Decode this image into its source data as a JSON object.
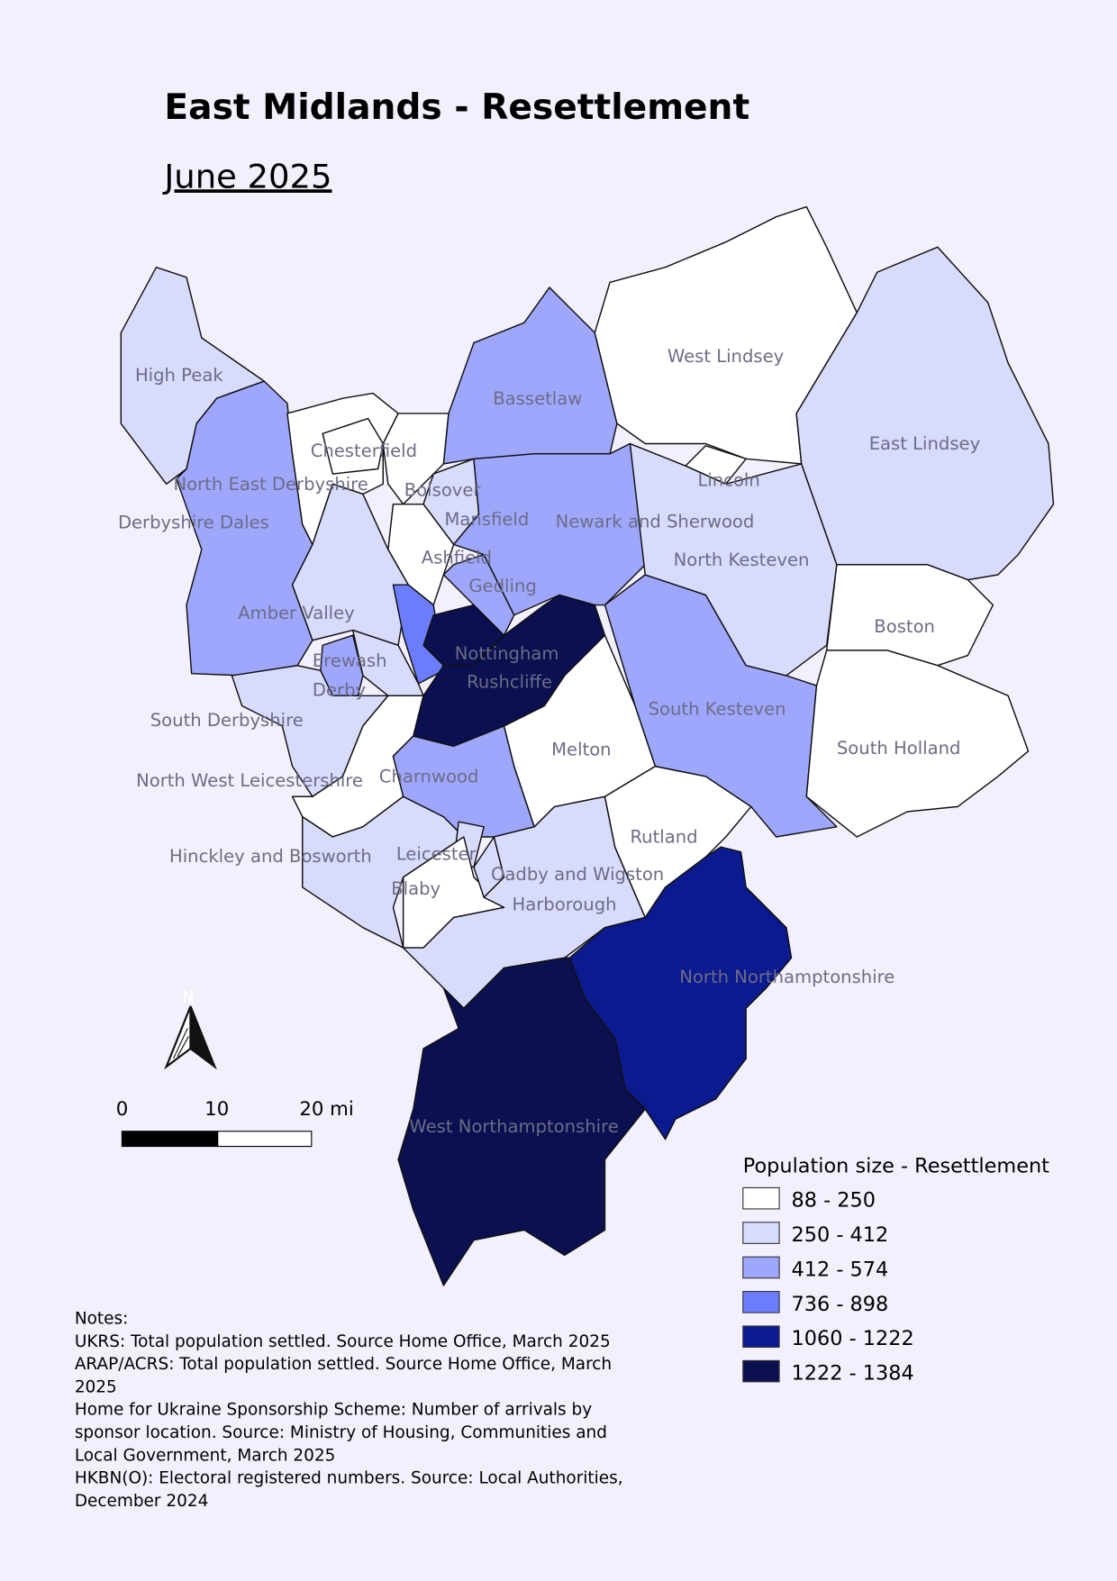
{
  "title": "East Midlands - Resettlement",
  "subtitle": "June 2025",
  "north_arrow_label": "N",
  "scale_bar": {
    "labels": [
      "0",
      "10",
      "20 mi"
    ]
  },
  "legend": {
    "title": "Population size - Resettlement",
    "items": [
      {
        "label": "88 - 250",
        "color": "#ffffff"
      },
      {
        "label": "250 - 412",
        "color": "#d8dbfc"
      },
      {
        "label": "412 - 574",
        "color": "#9ea7fc"
      },
      {
        "label": "736 - 898",
        "color": "#6b7dfc"
      },
      {
        "label": "1060 - 1222",
        "color": "#0c1a8f"
      },
      {
        "label": "1222 - 1384",
        "color": "#0a1050"
      }
    ]
  },
  "regions": [
    {
      "name": "High Peak",
      "class": 1
    },
    {
      "name": "Derbyshire Dales",
      "class": 2
    },
    {
      "name": "North East Derbyshire",
      "class": 0
    },
    {
      "name": "Chesterfield",
      "class": 0
    },
    {
      "name": "Bolsover",
      "class": 0
    },
    {
      "name": "Mansfield",
      "class": 1
    },
    {
      "name": "Ashfield",
      "class": 0
    },
    {
      "name": "Amber Valley",
      "class": 1
    },
    {
      "name": "",
      "class": 3
    },
    {
      "name": "Erewash",
      "class": 1
    },
    {
      "name": "Derby",
      "class": 2
    },
    {
      "name": "South Derbyshire",
      "class": 1
    },
    {
      "name": "North West Leicestershire",
      "class": 0
    },
    {
      "name": "Hinckley and Bosworth",
      "class": 1
    },
    {
      "name": "Charnwood",
      "class": 2
    },
    {
      "name": "Leicester",
      "class": 1
    },
    {
      "name": "Blaby",
      "class": 0
    },
    {
      "name": "Oadby and Wigston",
      "class": 1
    },
    {
      "name": "Harborough",
      "class": 1
    },
    {
      "name": "Melton",
      "class": 0
    },
    {
      "name": "Rutland",
      "class": 0
    },
    {
      "name": "South Kesteven",
      "class": 2
    },
    {
      "name": "Nottingham",
      "class": 5
    },
    {
      "name": "Rushcliffe",
      "class": 5
    },
    {
      "name": "Gedling",
      "class": 2
    },
    {
      "name": "Newark and Sherwood",
      "class": 2
    },
    {
      "name": "Bassetlaw",
      "class": 2
    },
    {
      "name": "West Lindsey",
      "class": 0
    },
    {
      "name": "Lincoln",
      "class": 0
    },
    {
      "name": "North Kesteven",
      "class": 1
    },
    {
      "name": "East Lindsey",
      "class": 1
    },
    {
      "name": "Boston",
      "class": 0
    },
    {
      "name": "South Holland",
      "class": 0
    },
    {
      "name": "North Northamptonshire",
      "class": 4
    },
    {
      "name": "West Northamptonshire",
      "class": 5
    }
  ],
  "notes": [
    "Notes:",
    "UKRS: Total population settled. Source Home Office, March 2025",
    "ARAP/ACRS: Total population settled. Source Home Office, March",
    "2025",
    "Home for Ukraine Sponsorship Scheme: Number of arrivals by",
    "sponsor location. Source: Ministry of Housing, Communities and",
    "Local Government, March 2025",
    "HKBN(O): Electoral registered numbers. Source: Local Authorities,",
    "December 2024"
  ]
}
